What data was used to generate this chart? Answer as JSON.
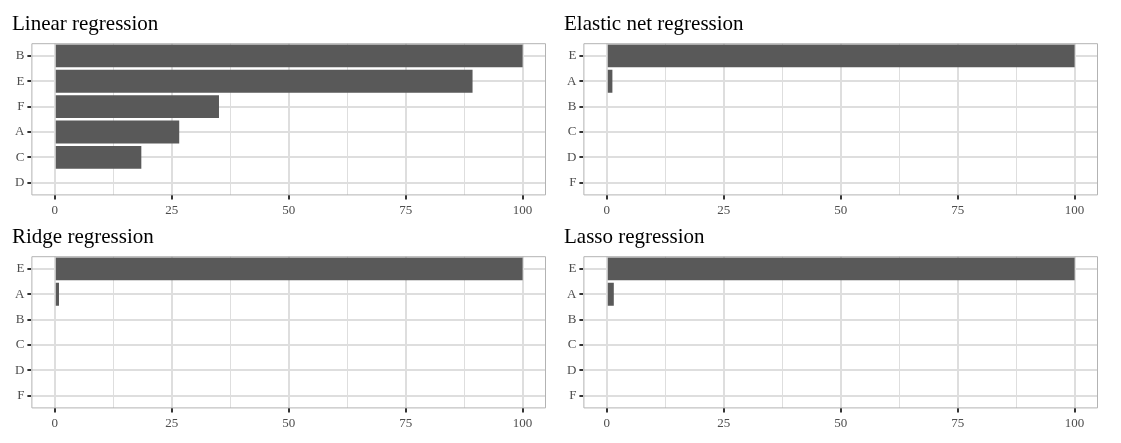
{
  "chart_data": [
    {
      "type": "bar",
      "orientation": "horizontal",
      "title": "Linear regression",
      "categories": [
        "B",
        "E",
        "F",
        "A",
        "C",
        "D"
      ],
      "values": [
        100,
        89.3,
        35.1,
        26.6,
        18.5,
        0
      ],
      "color": "#595959",
      "xlim": [
        -5,
        105
      ],
      "xticks": [
        0,
        {
          "value": 12.5,
          "label": null
        },
        25,
        {
          "value": 37.5,
          "label": null
        },
        50,
        {
          "value": 62.5,
          "label": null
        },
        75,
        {
          "value": 87.5,
          "label": null
        },
        100
      ],
      "grid": true
    },
    {
      "type": "bar",
      "orientation": "horizontal",
      "title": "Elastic net regression",
      "categories": [
        "E",
        "A",
        "B",
        "C",
        "D",
        "F"
      ],
      "values": [
        100,
        1.2,
        0,
        0,
        0,
        0
      ],
      "color": "#595959",
      "xlim": [
        -5,
        105
      ],
      "xticks": [
        0,
        {
          "value": 12.5,
          "label": null
        },
        25,
        {
          "value": 37.5,
          "label": null
        },
        50,
        {
          "value": 62.5,
          "label": null
        },
        75,
        {
          "value": 87.5,
          "label": null
        },
        100
      ],
      "grid": true
    },
    {
      "type": "bar",
      "orientation": "horizontal",
      "title": "Ridge regression",
      "categories": [
        "E",
        "A",
        "B",
        "C",
        "D",
        "F"
      ],
      "values": [
        100,
        0.9,
        0,
        0,
        0,
        0
      ],
      "color": "#595959",
      "xlim": [
        -5,
        105
      ],
      "xticks": [
        0,
        {
          "value": 12.5,
          "label": null
        },
        25,
        {
          "value": 37.5,
          "label": null
        },
        50,
        {
          "value": 62.5,
          "label": null
        },
        75,
        {
          "value": 87.5,
          "label": null
        },
        100
      ],
      "grid": true
    },
    {
      "type": "bar",
      "orientation": "horizontal",
      "title": "Lasso regression",
      "categories": [
        "E",
        "A",
        "B",
        "C",
        "D",
        "F"
      ],
      "values": [
        100,
        1.5,
        0,
        0,
        0,
        0
      ],
      "color": "#595959",
      "xlim": [
        -5,
        105
      ],
      "xticks": [
        0,
        {
          "value": 12.5,
          "label": null
        },
        25,
        {
          "value": 37.5,
          "label": null
        },
        50,
        {
          "value": 62.5,
          "label": null
        },
        75,
        {
          "value": 87.5,
          "label": null
        },
        100
      ],
      "grid": true
    }
  ]
}
